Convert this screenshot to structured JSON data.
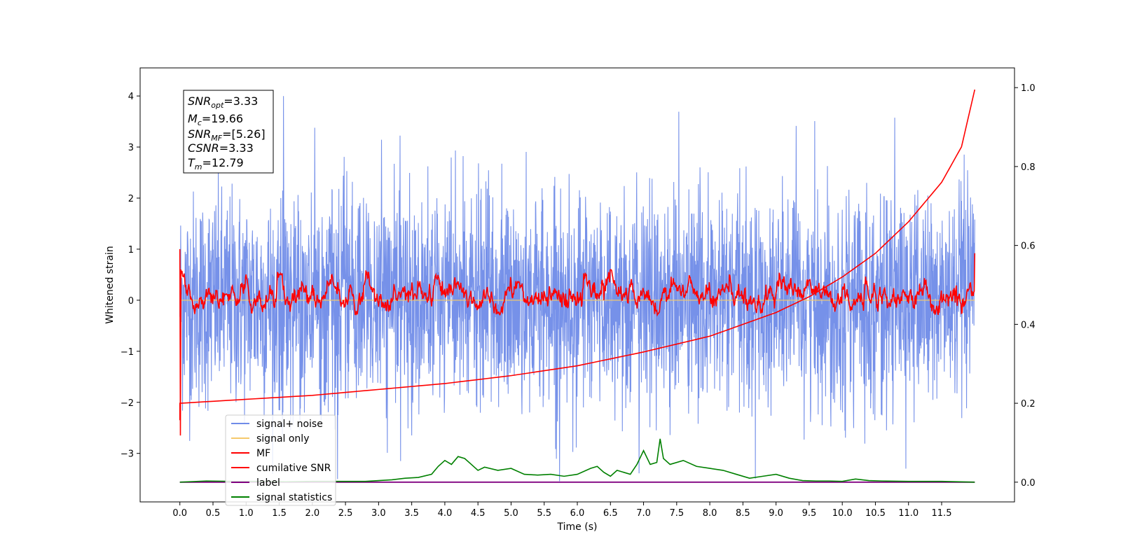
{
  "chart_data": {
    "type": "line",
    "title": "",
    "xlabel": "Time (s)",
    "ylabel": "Whitened strain",
    "xlim": [
      -0.6,
      12.6
    ],
    "ylim": [
      -3.95,
      4.55
    ],
    "y2lim": [
      -0.05,
      1.05
    ],
    "grid": false,
    "x_ticks": [
      "0.0",
      "0.5",
      "1.0",
      "1.5",
      "2.0",
      "2.5",
      "3.0",
      "3.5",
      "4.0",
      "4.5",
      "5.0",
      "5.5",
      "6.0",
      "6.5",
      "7.0",
      "7.5",
      "8.0",
      "8.5",
      "9.0",
      "9.5",
      "10.0",
      "10.5",
      "11.0",
      "11.5"
    ],
    "y_ticks": [
      "4",
      "3",
      "2",
      "1",
      "0",
      "−1",
      "−2",
      "−3"
    ],
    "y_tick_values": [
      4,
      3,
      2,
      1,
      0,
      -1,
      -2,
      -3
    ],
    "y2_ticks": [
      "0.0",
      "0.2",
      "0.4",
      "0.6",
      "0.8",
      "1.0"
    ],
    "y2_tick_values": [
      0.0,
      0.2,
      0.4,
      0.6,
      0.8,
      1.0
    ],
    "legend_position": "lower-left",
    "info_box": {
      "snr_opt": {
        "base": "SNR",
        "sub": "opt",
        "value": "=3.33"
      },
      "mc": {
        "base": "M",
        "sub": "c",
        "value": "=19.66"
      },
      "snr_mf": {
        "base": "SNR",
        "sub": "MF",
        "value": "=[5.26]"
      },
      "csnr": {
        "base": "CSNR",
        "value": "=3.33"
      },
      "tm": {
        "base": "T",
        "sub": "m",
        "value": "=12.79"
      }
    },
    "series": [
      {
        "name": "signal+ noise",
        "color": "#6f8be8",
        "axis": "left",
        "kind": "noise",
        "x_range": [
          0,
          12.0
        ],
        "spread_std": 1.05,
        "y_extent": [
          -3.55,
          4.15
        ]
      },
      {
        "name": "signal only",
        "color": "#f5c96b",
        "axis": "left",
        "kind": "flat",
        "x_range": [
          0,
          12.0
        ],
        "y_approx": 0.0
      },
      {
        "name": "MF",
        "color": "#ff0000",
        "axis": "left",
        "kind": "noisy-ma",
        "x_range": [
          0,
          12.0
        ],
        "start_value": 1.0,
        "end_value": 0.92,
        "dip_at_start": -2.65,
        "y_band": [
          -0.3,
          0.5
        ],
        "peaks": [
          {
            "x": 1.5,
            "y": 0.7
          },
          {
            "x": 2.8,
            "y": 0.55
          },
          {
            "x": 6.5,
            "y": 0.6
          },
          {
            "x": 3.9,
            "y": 0.45
          },
          {
            "x": 7.7,
            "y": 0.45
          }
        ]
      },
      {
        "name": "cumilative SNR",
        "color": "#ff0000",
        "axis": "right",
        "x": [
          0.0,
          1.0,
          2.0,
          3.0,
          4.0,
          5.0,
          6.0,
          7.0,
          8.0,
          9.0,
          9.5,
          10.0,
          10.5,
          11.0,
          11.5,
          11.8,
          12.0
        ],
        "y": [
          0.2,
          0.21,
          0.22,
          0.235,
          0.25,
          0.27,
          0.295,
          0.33,
          0.37,
          0.43,
          0.47,
          0.52,
          0.58,
          0.66,
          0.76,
          0.85,
          0.995
        ]
      },
      {
        "name": "label",
        "color": "#800080",
        "axis": "right",
        "x": [
          0.0,
          12.0
        ],
        "y": [
          0.0,
          0.0
        ]
      },
      {
        "name": "signal statistics",
        "color": "#008000",
        "axis": "right",
        "x": [
          0.0,
          0.4,
          0.8,
          1.2,
          1.6,
          2.0,
          2.4,
          2.8,
          3.0,
          3.2,
          3.4,
          3.6,
          3.8,
          3.9,
          4.0,
          4.1,
          4.2,
          4.3,
          4.4,
          4.5,
          4.6,
          4.8,
          5.0,
          5.2,
          5.4,
          5.6,
          5.8,
          6.0,
          6.2,
          6.3,
          6.4,
          6.5,
          6.6,
          6.8,
          6.9,
          7.0,
          7.1,
          7.2,
          7.25,
          7.3,
          7.4,
          7.6,
          7.8,
          8.0,
          8.2,
          8.4,
          8.6,
          8.8,
          9.0,
          9.2,
          9.4,
          9.6,
          9.8,
          10.0,
          10.2,
          10.4,
          10.6,
          11.0,
          11.5,
          12.0
        ],
        "y": [
          0.0,
          0.003,
          0.002,
          0.002,
          0.001,
          0.002,
          0.002,
          0.002,
          0.004,
          0.006,
          0.01,
          0.012,
          0.02,
          0.04,
          0.055,
          0.045,
          0.065,
          0.06,
          0.045,
          0.03,
          0.038,
          0.03,
          0.035,
          0.02,
          0.018,
          0.02,
          0.015,
          0.02,
          0.035,
          0.04,
          0.025,
          0.015,
          0.03,
          0.02,
          0.045,
          0.08,
          0.045,
          0.05,
          0.11,
          0.06,
          0.045,
          0.055,
          0.04,
          0.035,
          0.03,
          0.02,
          0.01,
          0.015,
          0.02,
          0.01,
          0.004,
          0.003,
          0.003,
          0.002,
          0.008,
          0.004,
          0.003,
          0.002,
          0.002,
          0.0
        ]
      }
    ]
  }
}
